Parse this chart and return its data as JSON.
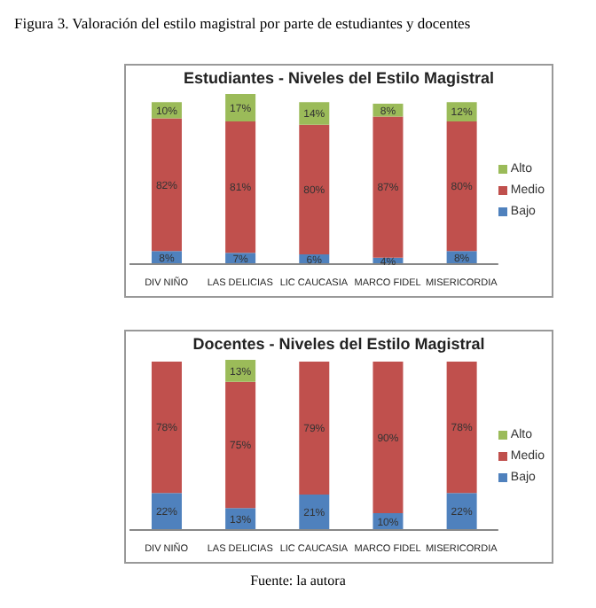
{
  "chart_data": [
    {
      "type": "bar",
      "title": "Estudiantes - Niveles del Estilo Magistral",
      "annotations": [
        "Figura 3. Valoración del estilo magistral por parte de estudiantes y docentes"
      ],
      "categories": [
        "DIV NIÑO",
        "LAS DELICIAS",
        "LIC CAUCASIA",
        "MARCO FIDEL",
        "MISERICORDIA"
      ],
      "stacked": true,
      "legend": "right",
      "series": [
        {
          "name": "Bajo",
          "color": "#4f81bd",
          "values": [
            8,
            7,
            6,
            4,
            8
          ],
          "value_labels": [
            "8%",
            "7%",
            "6%",
            "4%",
            "8%"
          ]
        },
        {
          "name": "Medio",
          "color": "#c0504d",
          "values": [
            82,
            81,
            80,
            87,
            80
          ],
          "value_labels": [
            "82%",
            "81%",
            "80%",
            "87%",
            "80%"
          ]
        },
        {
          "name": "Alto",
          "color": "#9bbb59",
          "values": [
            10,
            17,
            14,
            8,
            12
          ],
          "value_labels": [
            "10%",
            "17%",
            "14%",
            "8%",
            "12%"
          ]
        }
      ]
    },
    {
      "type": "bar",
      "title": "Docentes - Niveles del Estilo Magistral",
      "annotations": [
        "Fuente: la autora"
      ],
      "categories": [
        "DIV NIÑO",
        "LAS DELICIAS",
        "LIC CAUCASIA",
        "MARCO FIDEL",
        "MISERICORDIA"
      ],
      "stacked": true,
      "legend": "right",
      "series": [
        {
          "name": "Bajo",
          "color": "#4f81bd",
          "values": [
            22,
            13,
            21,
            10,
            22
          ],
          "value_labels": [
            "22%",
            "13%",
            "21%",
            "10%",
            "22%"
          ]
        },
        {
          "name": "Medio",
          "color": "#c0504d",
          "values": [
            78,
            75,
            79,
            90,
            78
          ],
          "value_labels": [
            "78%",
            "75%",
            "79%",
            "90%",
            "78%"
          ]
        },
        {
          "name": "Alto",
          "color": "#9bbb59",
          "values": [
            null,
            13,
            null,
            null,
            null
          ],
          "value_labels": [
            null,
            "13%",
            null,
            null,
            null
          ]
        }
      ]
    }
  ]
}
